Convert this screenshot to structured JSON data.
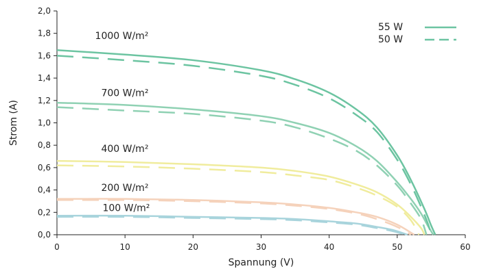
{
  "chart_data": {
    "type": "line",
    "title": "",
    "xlabel": "Spannung (V)",
    "ylabel": "Strom (A)",
    "xlim": [
      0,
      60
    ],
    "ylim": [
      0,
      2.0
    ],
    "x_ticks": [
      0,
      10,
      20,
      30,
      40,
      50,
      60
    ],
    "x_tick_labels": [
      "0",
      "10",
      "20",
      "30",
      "40",
      "50",
      "60"
    ],
    "y_ticks": [
      0,
      0.2,
      0.4,
      0.6,
      0.8,
      1.0,
      1.2,
      1.4,
      1.6,
      1.8,
      2.0
    ],
    "y_tick_labels": [
      "0,0",
      "0,2",
      "0,4",
      "0,6",
      "0,8",
      "1,0",
      "1,2",
      "1,4",
      "1,6",
      "1,8",
      "2,0"
    ],
    "grid": false,
    "legend_position": "top-right",
    "legend": [
      {
        "label": "55 W",
        "style": "solid"
      },
      {
        "label": "50 W",
        "style": "dashed"
      }
    ],
    "curves": [
      {
        "label": "1000 W/m²",
        "color": "#6cc4a1",
        "solid": {
          "x": [
            0,
            10,
            20,
            30,
            35,
            40,
            44,
            47,
            50,
            52,
            54,
            55,
            55.6
          ],
          "y": [
            1.65,
            1.61,
            1.56,
            1.47,
            1.39,
            1.27,
            1.12,
            0.96,
            0.71,
            0.49,
            0.23,
            0.08,
            0.0
          ]
        },
        "dashed": {
          "x": [
            0,
            10,
            20,
            30,
            35,
            40,
            44,
            47,
            50,
            52,
            53.5,
            54.5,
            55.0
          ],
          "y": [
            1.6,
            1.56,
            1.51,
            1.42,
            1.34,
            1.22,
            1.07,
            0.92,
            0.67,
            0.45,
            0.25,
            0.1,
            0.0
          ]
        }
      },
      {
        "label": "700 W/m²",
        "color": "#8fd1b3",
        "solid": {
          "x": [
            0,
            10,
            20,
            30,
            35,
            40,
            44,
            47,
            50,
            52,
            53.5,
            54.5,
            55.3
          ],
          "y": [
            1.18,
            1.16,
            1.12,
            1.06,
            1.0,
            0.91,
            0.79,
            0.66,
            0.47,
            0.32,
            0.19,
            0.08,
            0.0
          ]
        },
        "dashed": {
          "x": [
            0,
            10,
            20,
            30,
            35,
            40,
            44,
            47,
            50,
            52,
            53.5,
            54.3
          ],
          "y": [
            1.14,
            1.11,
            1.08,
            1.02,
            0.96,
            0.86,
            0.75,
            0.62,
            0.44,
            0.28,
            0.14,
            0.0
          ]
        }
      },
      {
        "label": "400 W/m²",
        "color": "#f0ec9d",
        "solid": {
          "x": [
            0,
            10,
            20,
            30,
            35,
            40,
            44,
            47,
            50,
            52,
            53.5,
            54.0
          ],
          "y": [
            0.66,
            0.65,
            0.63,
            0.6,
            0.57,
            0.52,
            0.45,
            0.38,
            0.27,
            0.16,
            0.06,
            0.0
          ]
        },
        "dashed": {
          "x": [
            0,
            10,
            20,
            30,
            35,
            40,
            44,
            47,
            50,
            52,
            53.2
          ],
          "y": [
            0.62,
            0.61,
            0.59,
            0.56,
            0.53,
            0.49,
            0.42,
            0.35,
            0.25,
            0.13,
            0.0
          ]
        }
      },
      {
        "label": "200 W/m²",
        "color": "#f5d2bb",
        "solid": {
          "x": [
            0,
            10,
            20,
            30,
            35,
            40,
            44,
            47,
            50,
            52.5
          ],
          "y": [
            0.32,
            0.32,
            0.31,
            0.29,
            0.27,
            0.24,
            0.2,
            0.16,
            0.09,
            0.0
          ]
        },
        "dashed": {
          "x": [
            0,
            10,
            20,
            30,
            35,
            40,
            44,
            47,
            50,
            52.0
          ],
          "y": [
            0.31,
            0.31,
            0.3,
            0.28,
            0.26,
            0.23,
            0.19,
            0.14,
            0.07,
            0.0
          ]
        }
      },
      {
        "label": "100 W/m²",
        "color": "#a8d4dc",
        "solid": {
          "x": [
            0,
            10,
            20,
            30,
            35,
            40,
            44,
            47,
            49.5,
            51.5
          ],
          "y": [
            0.17,
            0.17,
            0.16,
            0.15,
            0.14,
            0.12,
            0.1,
            0.07,
            0.04,
            0.0
          ]
        },
        "dashed": {
          "x": [
            0,
            10,
            20,
            30,
            35,
            40,
            44,
            47,
            49.5,
            51.2
          ],
          "y": [
            0.16,
            0.16,
            0.15,
            0.14,
            0.13,
            0.11,
            0.09,
            0.06,
            0.03,
            0.0
          ]
        }
      }
    ],
    "annotations": [
      {
        "text": "1000 W/m²",
        "x": 5.6,
        "y": 1.75
      },
      {
        "text": "700 W/m²",
        "x": 6.5,
        "y": 1.24
      },
      {
        "text": "400 W/m²",
        "x": 6.5,
        "y": 0.74
      },
      {
        "text": "200 W/m²",
        "x": 6.5,
        "y": 0.39
      },
      {
        "text": "100 W/m²",
        "x": 6.7,
        "y": 0.21
      }
    ],
    "legend_color": "#6cc4a1"
  }
}
